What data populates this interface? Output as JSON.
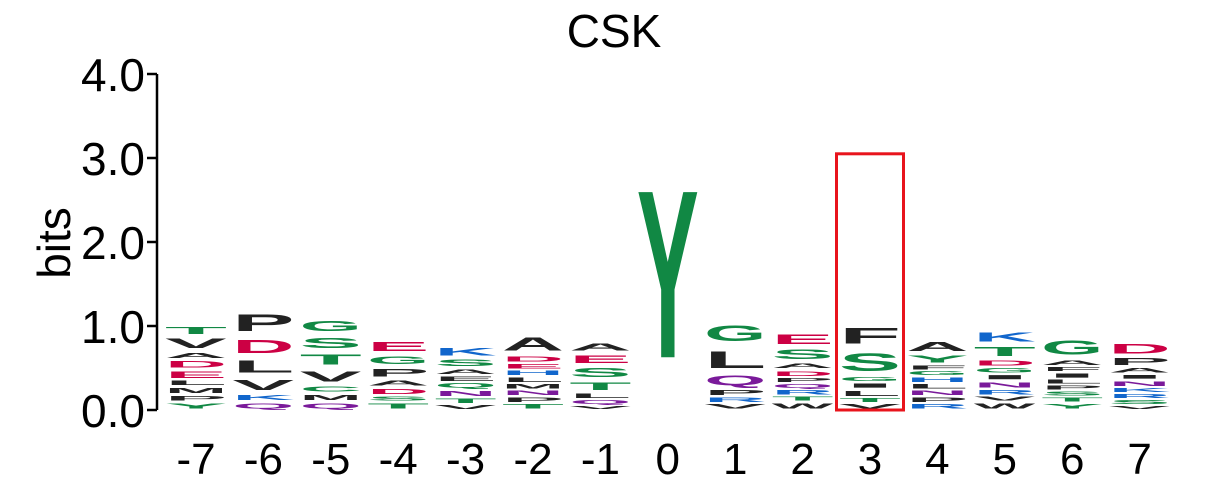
{
  "chart_data": {
    "type": "sequence-logo",
    "title": "CSK",
    "ylabel": "bits",
    "xlabel": "",
    "ylim": [
      0,
      4
    ],
    "yticks": [
      {
        "value": 0,
        "label": "0.0"
      },
      {
        "value": 1,
        "label": "1.0"
      },
      {
        "value": 2,
        "label": "2.0"
      },
      {
        "value": 3,
        "label": "3.0"
      },
      {
        "value": 4,
        "label": "4.0"
      }
    ],
    "highlight": {
      "position": "3",
      "top": 3.05,
      "color": "#e8141c"
    },
    "colors": {
      "green": "#118844",
      "black": "#222222",
      "red": "#cc0044",
      "blue": "#1166cc",
      "purple": "#7a1a9a"
    },
    "positions": [
      {
        "label": "-7",
        "letters": [
          {
            "aa": "Y",
            "h": 0.1,
            "color": "green"
          },
          {
            "aa": "P",
            "h": 0.08,
            "color": "black"
          },
          {
            "aa": "M",
            "h": 0.1,
            "color": "black"
          },
          {
            "aa": "L",
            "h": 0.08,
            "color": "black"
          },
          {
            "aa": "E",
            "h": 0.12,
            "color": "red"
          },
          {
            "aa": "D",
            "h": 0.12,
            "color": "red"
          },
          {
            "aa": "A",
            "h": 0.1,
            "color": "black"
          },
          {
            "aa": "V",
            "h": 0.18,
            "color": "black"
          },
          {
            "aa": "T",
            "h": 0.14,
            "color": "green"
          }
        ]
      },
      {
        "label": "-6",
        "letters": [
          {
            "aa": "Q",
            "h": 0.1,
            "color": "purple"
          },
          {
            "aa": "K",
            "h": 0.1,
            "color": "blue"
          },
          {
            "aa": "V",
            "h": 0.2,
            "color": "black"
          },
          {
            "aa": "L",
            "h": 0.23,
            "color": "black"
          },
          {
            "aa": "D",
            "h": 0.25,
            "color": "red"
          },
          {
            "aa": "P",
            "h": 0.32,
            "color": "black"
          }
        ]
      },
      {
        "label": "-5",
        "letters": [
          {
            "aa": "Q",
            "h": 0.1,
            "color": "purple"
          },
          {
            "aa": "M",
            "h": 0.1,
            "color": "black"
          },
          {
            "aa": "C",
            "h": 0.1,
            "color": "green"
          },
          {
            "aa": "V",
            "h": 0.2,
            "color": "black"
          },
          {
            "aa": "T",
            "h": 0.2,
            "color": "green"
          },
          {
            "aa": "S",
            "h": 0.2,
            "color": "green"
          },
          {
            "aa": "G",
            "h": 0.2,
            "color": "green"
          }
        ]
      },
      {
        "label": "-4",
        "letters": [
          {
            "aa": "T",
            "h": 0.1,
            "color": "green"
          },
          {
            "aa": "S",
            "h": 0.07,
            "color": "green"
          },
          {
            "aa": "D",
            "h": 0.1,
            "color": "red"
          },
          {
            "aa": "A",
            "h": 0.1,
            "color": "black"
          },
          {
            "aa": "P",
            "h": 0.15,
            "color": "black"
          },
          {
            "aa": "G",
            "h": 0.15,
            "color": "green"
          },
          {
            "aa": "E",
            "h": 0.17,
            "color": "red"
          }
        ]
      },
      {
        "label": "-3",
        "letters": [
          {
            "aa": "V",
            "h": 0.07,
            "color": "black"
          },
          {
            "aa": "T",
            "h": 0.08,
            "color": "green"
          },
          {
            "aa": "N",
            "h": 0.1,
            "color": "purple"
          },
          {
            "aa": "Q",
            "h": 0.08,
            "color": "green"
          },
          {
            "aa": "E",
            "h": 0.08,
            "color": "black"
          },
          {
            "aa": "A",
            "h": 0.09,
            "color": "black"
          },
          {
            "aa": "S",
            "h": 0.12,
            "color": "green"
          },
          {
            "aa": "K",
            "h": 0.15,
            "color": "blue"
          }
        ]
      },
      {
        "label": "-2",
        "letters": [
          {
            "aa": "T",
            "h": 0.08,
            "color": "green"
          },
          {
            "aa": "P",
            "h": 0.08,
            "color": "black"
          },
          {
            "aa": "N",
            "h": 0.08,
            "color": "purple"
          },
          {
            "aa": "M",
            "h": 0.08,
            "color": "black"
          },
          {
            "aa": "L",
            "h": 0.08,
            "color": "black"
          },
          {
            "aa": "H",
            "h": 0.08,
            "color": "blue"
          },
          {
            "aa": "E",
            "h": 0.08,
            "color": "red"
          },
          {
            "aa": "D",
            "h": 0.1,
            "color": "red"
          },
          {
            "aa": "A",
            "h": 0.25,
            "color": "black"
          }
        ]
      },
      {
        "label": "-1",
        "letters": [
          {
            "aa": "V",
            "h": 0.06,
            "color": "black"
          },
          {
            "aa": "Q",
            "h": 0.07,
            "color": "purple"
          },
          {
            "aa": "L",
            "h": 0.08,
            "color": "black"
          },
          {
            "aa": "T",
            "h": 0.15,
            "color": "green"
          },
          {
            "aa": "S",
            "h": 0.17,
            "color": "green"
          },
          {
            "aa": "E",
            "h": 0.15,
            "color": "red"
          },
          {
            "aa": "A",
            "h": 0.14,
            "color": "black"
          }
        ]
      },
      {
        "label": "0",
        "letters": [
          {
            "aa": "Y",
            "h": 3.2,
            "color": "green"
          }
        ]
      },
      {
        "label": "1",
        "letters": [
          {
            "aa": "V",
            "h": 0.08,
            "color": "black"
          },
          {
            "aa": "R",
            "h": 0.08,
            "color": "blue"
          },
          {
            "aa": "P",
            "h": 0.1,
            "color": "black"
          },
          {
            "aa": "Q",
            "h": 0.18,
            "color": "purple"
          },
          {
            "aa": "L",
            "h": 0.32,
            "color": "black"
          },
          {
            "aa": "G",
            "h": 0.3,
            "color": "green"
          }
        ]
      },
      {
        "label": "2",
        "letters": [
          {
            "aa": "W",
            "h": 0.1,
            "color": "black"
          },
          {
            "aa": "T",
            "h": 0.07,
            "color": "green"
          },
          {
            "aa": "R",
            "h": 0.08,
            "color": "blue"
          },
          {
            "aa": "Q",
            "h": 0.07,
            "color": "purple"
          },
          {
            "aa": "P",
            "h": 0.07,
            "color": "black"
          },
          {
            "aa": "D",
            "h": 0.09,
            "color": "red"
          },
          {
            "aa": "A",
            "h": 0.09,
            "color": "black"
          },
          {
            "aa": "S",
            "h": 0.18,
            "color": "green"
          },
          {
            "aa": "E",
            "h": 0.18,
            "color": "red"
          }
        ]
      },
      {
        "label": "3",
        "letters": [
          {
            "aa": "V",
            "h": 0.08,
            "color": "black"
          },
          {
            "aa": "T",
            "h": 0.07,
            "color": "green"
          },
          {
            "aa": "L",
            "h": 0.1,
            "color": "black"
          },
          {
            "aa": "I",
            "h": 0.08,
            "color": "black"
          },
          {
            "aa": "G",
            "h": 0.07,
            "color": "green"
          },
          {
            "aa": "S",
            "h": 0.33,
            "color": "green"
          },
          {
            "aa": "F",
            "h": 0.3,
            "color": "black"
          }
        ]
      },
      {
        "label": "4",
        "letters": [
          {
            "aa": "R",
            "h": 0.08,
            "color": "blue"
          },
          {
            "aa": "P",
            "h": 0.08,
            "color": "black"
          },
          {
            "aa": "N",
            "h": 0.08,
            "color": "purple"
          },
          {
            "aa": "L",
            "h": 0.08,
            "color": "black"
          },
          {
            "aa": "H",
            "h": 0.08,
            "color": "blue"
          },
          {
            "aa": "G",
            "h": 0.07,
            "color": "green"
          },
          {
            "aa": "F",
            "h": 0.07,
            "color": "black"
          },
          {
            "aa": "Y",
            "h": 0.13,
            "color": "green"
          },
          {
            "aa": "A",
            "h": 0.17,
            "color": "black"
          }
        ]
      },
      {
        "label": "5",
        "letters": [
          {
            "aa": "W",
            "h": 0.1,
            "color": "black"
          },
          {
            "aa": "V",
            "h": 0.07,
            "color": "black"
          },
          {
            "aa": "R",
            "h": 0.08,
            "color": "blue"
          },
          {
            "aa": "N",
            "h": 0.1,
            "color": "purple"
          },
          {
            "aa": "I",
            "h": 0.08,
            "color": "black"
          },
          {
            "aa": "G",
            "h": 0.08,
            "color": "green"
          },
          {
            "aa": "D",
            "h": 0.1,
            "color": "red"
          },
          {
            "aa": "T",
            "h": 0.17,
            "color": "green"
          },
          {
            "aa": "K",
            "h": 0.17,
            "color": "blue"
          }
        ]
      },
      {
        "label": "6",
        "letters": [
          {
            "aa": "Y",
            "h": 0.09,
            "color": "green"
          },
          {
            "aa": "T",
            "h": 0.07,
            "color": "green"
          },
          {
            "aa": "S",
            "h": 0.07,
            "color": "green"
          },
          {
            "aa": "P",
            "h": 0.07,
            "color": "black"
          },
          {
            "aa": "L",
            "h": 0.07,
            "color": "black"
          },
          {
            "aa": "I",
            "h": 0.08,
            "color": "black"
          },
          {
            "aa": "F",
            "h": 0.07,
            "color": "black"
          },
          {
            "aa": "A",
            "h": 0.09,
            "color": "black"
          },
          {
            "aa": "G",
            "h": 0.27,
            "color": "green"
          }
        ]
      },
      {
        "label": "7",
        "letters": [
          {
            "aa": "V",
            "h": 0.06,
            "color": "black"
          },
          {
            "aa": "S",
            "h": 0.07,
            "color": "green"
          },
          {
            "aa": "R",
            "h": 0.07,
            "color": "blue"
          },
          {
            "aa": "K",
            "h": 0.07,
            "color": "blue"
          },
          {
            "aa": "N",
            "h": 0.09,
            "color": "purple"
          },
          {
            "aa": "I",
            "h": 0.07,
            "color": "black"
          },
          {
            "aa": "A",
            "h": 0.08,
            "color": "black"
          },
          {
            "aa": "P",
            "h": 0.13,
            "color": "black"
          },
          {
            "aa": "D",
            "h": 0.18,
            "color": "red"
          }
        ]
      }
    ]
  }
}
